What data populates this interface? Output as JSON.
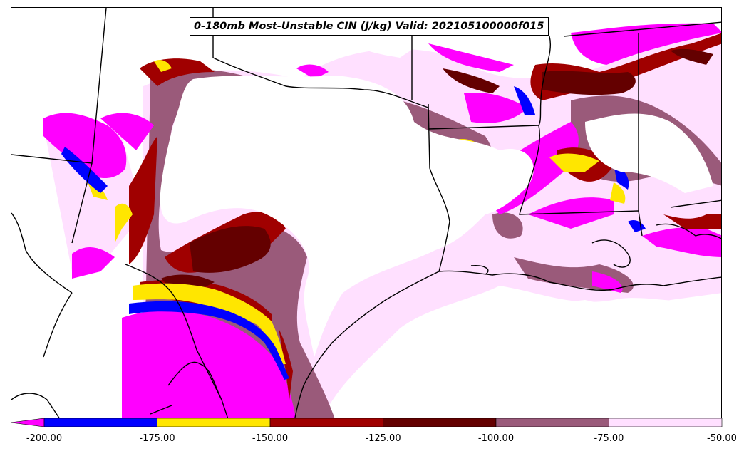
{
  "map": {
    "title": "0-180mb Most-Unstable CIN (J/kg) Valid: 202105100000f015",
    "field": "Most-Unstable CIN",
    "units": "J/kg",
    "region": "South-Central United States / Texas",
    "colors": {
      "below_-200": "#ff00ff",
      "-200_to_-175": "#0000ff",
      "-175_to_-150": "#ffe600",
      "-150_to_-125": "#a00000",
      "-125_to_-100": "#640000",
      "-100_to_-75": "#9a5a7a",
      "-75_to_-50": "#ffe0ff",
      "above_-50": "#ffffff"
    }
  },
  "colorbar": {
    "ticks": [
      "-200.00",
      "-175.00",
      "-150.00",
      "-125.00",
      "-100.00",
      "-75.00",
      "-50.00"
    ],
    "bins": [
      {
        "range": "< -200",
        "color": "#ff00ff"
      },
      {
        "range": "-200 to -175",
        "color": "#0000ff"
      },
      {
        "range": "-175 to -150",
        "color": "#ffe600"
      },
      {
        "range": "-150 to -125",
        "color": "#a00000"
      },
      {
        "range": "-125 to -100",
        "color": "#640000"
      },
      {
        "range": "-100 to -75",
        "color": "#9a5a7a"
      },
      {
        "range": "-75 to -50",
        "color": "#ffe0ff"
      }
    ]
  }
}
